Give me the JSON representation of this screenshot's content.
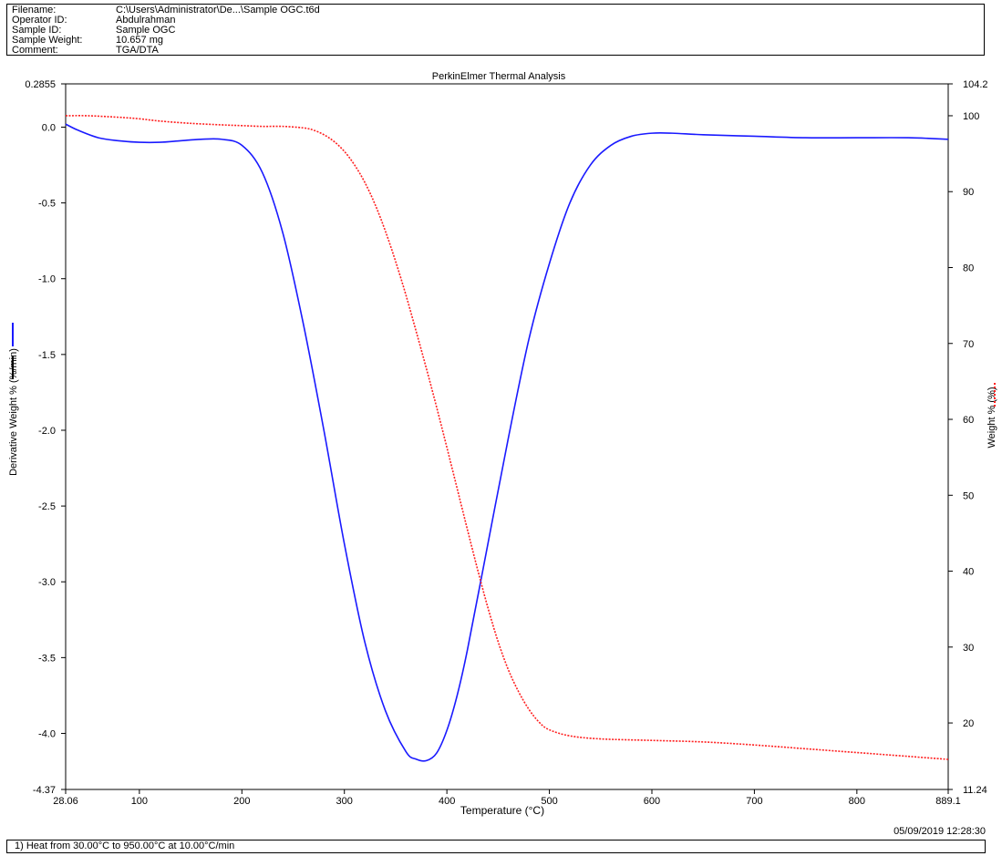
{
  "info": {
    "rows": [
      {
        "label": "Filename:",
        "value": "C:\\Users\\Administrator\\De...\\Sample OGC.t6d"
      },
      {
        "label": "Operator ID:",
        "value": "Abdulrahman"
      },
      {
        "label": "Sample ID:",
        "value": "Sample OGC"
      },
      {
        "label": "Sample Weight:",
        "value": "10.657 mg"
      },
      {
        "label": "Comment:",
        "value": "TGA/DTA"
      }
    ]
  },
  "timestamp": "05/09/2019 12:28:30",
  "footer": "1)  Heat from 30.00°C to 950.00°C at 10.00°C/min",
  "chart_data": {
    "type": "line",
    "title": "PerkinElmer Thermal Analysis",
    "xlabel": "Temperature (°C)",
    "ylabel_left": "Derivative Weight % (%/min)",
    "ylabel_right": "Weight % (%)",
    "xlim": [
      28.06,
      889.1
    ],
    "ylim_left": [
      -4.37,
      0.2855
    ],
    "ylim_right": [
      11.24,
      104.2
    ],
    "x_ticks": [
      "28.06",
      "100",
      "200",
      "300",
      "400",
      "500",
      "600",
      "700",
      "800",
      "889.1"
    ],
    "x_tick_values": [
      28.06,
      100,
      200,
      300,
      400,
      500,
      600,
      700,
      800,
      889.1
    ],
    "y_left_ticks": [
      "0.2855",
      "0.0",
      "-0.5",
      "-1.0",
      "-1.5",
      "-2.0",
      "-2.5",
      "-3.0",
      "-3.5",
      "-4.0",
      "-4.37"
    ],
    "y_left_tick_values": [
      0.2855,
      0.0,
      -0.5,
      -1.0,
      -1.5,
      -2.0,
      -2.5,
      -3.0,
      -3.5,
      -4.0,
      -4.37
    ],
    "y_right_ticks": [
      "104.2",
      "100",
      "90",
      "80",
      "70",
      "60",
      "50",
      "40",
      "30",
      "20",
      "11.24"
    ],
    "y_right_tick_values": [
      104.2,
      100,
      90,
      80,
      70,
      60,
      50,
      40,
      30,
      20,
      11.24
    ],
    "grid": false,
    "series": [
      {
        "color": "#1a1aff",
        "style": "solid",
        "axis": "left",
        "x": [
          28.06,
          40,
          60,
          80,
          100,
          120,
          140,
          160,
          180,
          200,
          220,
          240,
          260,
          280,
          300,
          320,
          340,
          360,
          370,
          380,
          390,
          400,
          410,
          420,
          440,
          460,
          480,
          500,
          520,
          540,
          560,
          580,
          600,
          620,
          650,
          700,
          750,
          800,
          850,
          889.1
        ],
        "values": [
          0.02,
          -0.02,
          -0.07,
          -0.09,
          -0.1,
          -0.1,
          -0.09,
          -0.08,
          -0.08,
          -0.12,
          -0.3,
          -0.7,
          -1.3,
          -2.0,
          -2.75,
          -3.4,
          -3.85,
          -4.12,
          -4.17,
          -4.18,
          -4.13,
          -3.98,
          -3.75,
          -3.45,
          -2.75,
          -2.05,
          -1.4,
          -0.9,
          -0.5,
          -0.25,
          -0.12,
          -0.06,
          -0.04,
          -0.04,
          -0.05,
          -0.06,
          -0.07,
          -0.07,
          -0.07,
          -0.08
        ]
      },
      {
        "color": "#ff2020",
        "style": "dotted",
        "axis": "right",
        "x": [
          28.06,
          50,
          80,
          100,
          120,
          150,
          180,
          200,
          220,
          240,
          260,
          270,
          280,
          290,
          300,
          310,
          320,
          330,
          340,
          350,
          360,
          370,
          380,
          390,
          400,
          410,
          420,
          430,
          440,
          450,
          460,
          470,
          480,
          490,
          500,
          520,
          550,
          600,
          650,
          700,
          750,
          800,
          850,
          889.1
        ],
        "values": [
          100,
          100,
          99.8,
          99.6,
          99.3,
          99.0,
          98.8,
          98.7,
          98.6,
          98.6,
          98.4,
          98.1,
          97.5,
          96.6,
          95.3,
          93.5,
          91.2,
          88.3,
          84.8,
          80.8,
          76.4,
          71.6,
          66.7,
          61.6,
          56.3,
          50.9,
          45.5,
          40.2,
          35.2,
          30.7,
          27.0,
          24.1,
          21.8,
          20.1,
          19.1,
          18.3,
          17.9,
          17.7,
          17.5,
          17.1,
          16.6,
          16.1,
          15.6,
          15.2
        ]
      }
    ]
  }
}
